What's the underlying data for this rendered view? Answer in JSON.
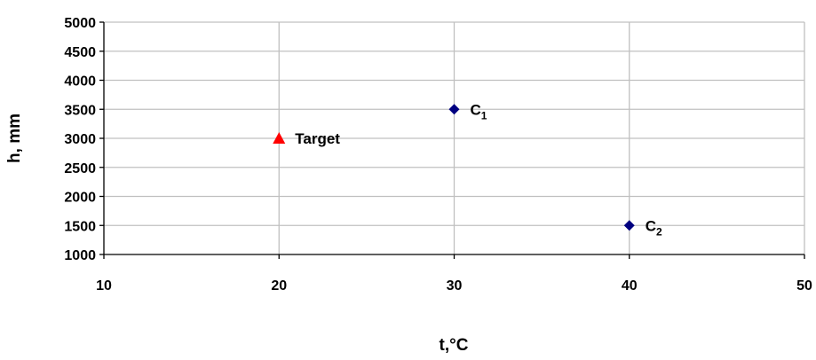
{
  "chart_data": {
    "type": "scatter",
    "xlabel": "t,°C",
    "ylabel": "h, mm",
    "xlim": [
      10,
      50
    ],
    "ylim": [
      1000,
      5000
    ],
    "x_ticks": [
      "10",
      "20",
      "30",
      "40",
      "50"
    ],
    "y_ticks": [
      "1000",
      "1500",
      "2000",
      "2500",
      "3000",
      "3500",
      "4000",
      "4500",
      "5000"
    ],
    "grid": true,
    "points": [
      {
        "label": "Target",
        "subscript": "",
        "x": 20,
        "y": 3000,
        "marker": "triangle",
        "color": "#ff0000"
      },
      {
        "label": "C",
        "subscript": "1",
        "x": 30,
        "y": 3500,
        "marker": "diamond",
        "color": "#000080"
      },
      {
        "label": "C",
        "subscript": "2",
        "x": 40,
        "y": 1500,
        "marker": "diamond",
        "color": "#000080"
      }
    ]
  }
}
